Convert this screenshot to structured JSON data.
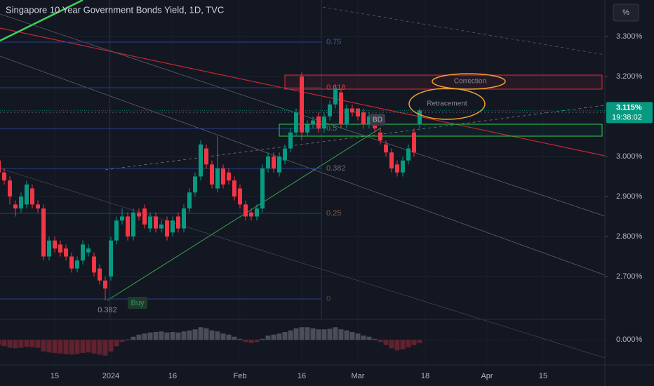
{
  "chart_data": {
    "type": "candlestick",
    "title": "Singapore 10 Year Government Bonds Yield, 1D, TVC",
    "y_axis_label": "%",
    "categories": [
      null,
      null,
      null,
      null,
      null,
      null,
      null,
      null,
      null,
      null,
      "15",
      null,
      null,
      null,
      null,
      null,
      null,
      null,
      null,
      null,
      "2024",
      null,
      null,
      null,
      null,
      null,
      null,
      null,
      null,
      null,
      null,
      "16",
      null,
      null,
      null,
      null,
      null,
      null,
      null,
      null,
      null,
      null,
      null,
      "Feb",
      null,
      null,
      null,
      null,
      null,
      null,
      null,
      null,
      null,
      null,
      "16",
      null,
      null,
      null,
      null,
      null,
      null,
      null,
      null,
      null,
      "Mar",
      null,
      null,
      null,
      null,
      null,
      null,
      null,
      null,
      null,
      null,
      null,
      "18",
      null,
      null,
      null,
      null,
      null,
      null,
      null,
      null,
      null,
      null,
      "Apr",
      null,
      null,
      null,
      null,
      null,
      null,
      null,
      null,
      null,
      "15"
    ],
    "open": [
      2.99,
      2.96,
      2.94,
      2.88,
      2.87,
      2.88,
      2.92,
      2.88,
      2.87,
      2.75,
      2.79,
      2.78,
      2.77,
      2.75,
      2.72,
      2.74,
      2.76,
      2.75,
      2.72,
      2.69,
      2.7,
      2.79,
      2.84,
      2.85,
      2.8,
      2.86,
      2.87,
      2.82,
      2.85,
      2.82,
      2.84,
      2.81,
      2.85,
      2.82,
      2.87,
      2.91,
      2.95,
      3.02,
      2.98,
      2.92,
      2.97,
      2.96,
      2.94,
      2.92,
      2.88,
      2.86,
      2.85,
      2.87,
      2.97,
      3.0,
      2.96,
      2.99,
      3.02,
      3.06,
      3.2,
      3.06,
      3.08,
      3.1,
      3.07,
      3.1,
      3.13,
      3.16,
      3.08,
      3.12,
      3.12,
      3.11,
      3.08,
      3.09,
      3.06,
      3.03,
      3.01,
      2.98,
      2.96,
      2.99,
      3.06,
      3.08,
      null,
      null,
      null,
      null,
      null,
      null,
      null,
      null,
      null,
      null,
      null,
      null,
      null,
      null,
      null,
      null,
      null,
      null,
      null,
      null,
      null,
      null
    ],
    "high": [
      3.0,
      2.97,
      2.95,
      2.89,
      2.91,
      2.94,
      2.93,
      2.89,
      2.88,
      2.8,
      2.8,
      2.79,
      2.78,
      2.76,
      2.75,
      2.79,
      2.78,
      2.76,
      2.73,
      2.7,
      2.8,
      2.85,
      2.87,
      2.86,
      2.87,
      2.87,
      2.88,
      2.86,
      2.86,
      2.84,
      2.85,
      2.85,
      2.86,
      2.88,
      2.92,
      2.96,
      3.04,
      3.03,
      2.99,
      3.05,
      2.98,
      2.97,
      2.95,
      2.93,
      2.89,
      2.87,
      2.88,
      2.98,
      3.01,
      3.01,
      3.01,
      3.03,
      3.07,
      3.12,
      3.21,
      3.09,
      3.1,
      3.11,
      3.11,
      3.14,
      3.18,
      3.17,
      3.13,
      3.13,
      3.12,
      3.12,
      3.11,
      3.1,
      3.07,
      3.04,
      3.02,
      2.99,
      3.0,
      3.03,
      3.07,
      3.12,
      null,
      null,
      null,
      null,
      null,
      null,
      null,
      null,
      null,
      null,
      null,
      null,
      null,
      null,
      null,
      null,
      null,
      null,
      null,
      null,
      null,
      null
    ],
    "low": [
      2.95,
      2.93,
      2.88,
      2.85,
      2.86,
      2.87,
      2.87,
      2.86,
      2.74,
      2.74,
      2.76,
      2.75,
      2.74,
      2.71,
      2.71,
      2.73,
      2.75,
      2.7,
      2.68,
      2.64,
      2.69,
      2.78,
      2.83,
      2.79,
      2.79,
      2.84,
      2.82,
      2.81,
      2.81,
      2.81,
      2.79,
      2.8,
      2.81,
      2.81,
      2.86,
      2.9,
      2.94,
      2.97,
      2.92,
      2.91,
      2.92,
      2.93,
      2.89,
      2.87,
      2.84,
      2.84,
      2.84,
      2.86,
      2.96,
      2.96,
      2.95,
      2.98,
      3.01,
      3.05,
      3.04,
      3.05,
      3.07,
      3.06,
      3.06,
      3.09,
      3.12,
      3.07,
      3.07,
      3.1,
      3.09,
      3.07,
      3.07,
      3.06,
      3.03,
      3.0,
      2.96,
      2.95,
      2.95,
      2.98,
      3.0,
      3.07,
      null,
      null,
      null,
      null,
      null,
      null,
      null,
      null,
      null,
      null,
      null,
      null,
      null,
      null,
      null,
      null,
      null,
      null,
      null,
      null,
      null,
      null
    ],
    "close": [
      2.96,
      2.94,
      2.9,
      2.87,
      2.9,
      2.93,
      2.88,
      2.87,
      2.75,
      2.79,
      2.77,
      2.76,
      2.75,
      2.72,
      2.74,
      2.78,
      2.77,
      2.71,
      2.69,
      2.67,
      2.79,
      2.84,
      2.85,
      2.8,
      2.86,
      2.85,
      2.83,
      2.85,
      2.82,
      2.83,
      2.8,
      2.84,
      2.82,
      2.87,
      2.91,
      2.95,
      3.03,
      2.98,
      2.93,
      2.97,
      2.93,
      2.94,
      2.9,
      2.88,
      2.85,
      2.85,
      2.87,
      2.97,
      3.0,
      2.97,
      3.0,
      3.02,
      3.06,
      3.11,
      3.06,
      3.08,
      3.09,
      3.07,
      3.1,
      3.13,
      3.17,
      3.08,
      3.12,
      3.11,
      3.1,
      3.08,
      3.1,
      3.07,
      3.04,
      3.01,
      2.97,
      2.96,
      2.99,
      3.02,
      3.01,
      3.115,
      null,
      null,
      null,
      null,
      null,
      null,
      null,
      null,
      null,
      null,
      null,
      null,
      null,
      null,
      null,
      null,
      null,
      null,
      null,
      null,
      null,
      null
    ],
    "up_color": "#089981",
    "down_color": "#f23645",
    "ylim": [
      2.593,
      3.391
    ],
    "yticks": [
      {
        "value": 2.7,
        "label": "2.700%"
      },
      {
        "value": 2.8,
        "label": "2.800%"
      },
      {
        "value": 2.9,
        "label": "2.900%"
      },
      {
        "value": 3.0,
        "label": "3.000%"
      },
      {
        "value": 3.2,
        "label": "3.200%"
      },
      {
        "value": 3.3,
        "label": "3.300%"
      }
    ],
    "grid": true,
    "last_price": {
      "value": 3.115,
      "label": "3.115%"
    },
    "countdown": "19:38:02",
    "indicator": {
      "ylim": [
        -0.045,
        0.035
      ],
      "yticks": [
        {
          "value": 0,
          "label": "0.000%"
        }
      ],
      "histogram": [
        -0.01,
        -0.012,
        -0.015,
        -0.016,
        -0.015,
        -0.013,
        -0.014,
        -0.015,
        -0.022,
        -0.024,
        -0.025,
        -0.026,
        -0.027,
        -0.028,
        -0.027,
        -0.025,
        -0.024,
        -0.026,
        -0.028,
        -0.03,
        -0.022,
        -0.012,
        -0.004,
        0.001,
        0.006,
        0.01,
        0.012,
        0.014,
        0.015,
        0.016,
        0.014,
        0.015,
        0.014,
        0.016,
        0.018,
        0.02,
        0.024,
        0.022,
        0.018,
        0.016,
        0.012,
        0.01,
        0.006,
        0.002,
        -0.004,
        -0.006,
        -0.004,
        0.002,
        0.008,
        0.01,
        0.012,
        0.015,
        0.018,
        0.022,
        0.024,
        0.024,
        0.022,
        0.02,
        0.02,
        0.021,
        0.024,
        0.02,
        0.018,
        0.015,
        0.012,
        0.008,
        0.006,
        0.002,
        -0.004,
        -0.01,
        -0.016,
        -0.02,
        -0.018,
        -0.014,
        -0.01,
        -0.006,
        null,
        null,
        null,
        null,
        null,
        null,
        null,
        null,
        null,
        null,
        null,
        null,
        null,
        null,
        null,
        null,
        null,
        null,
        null,
        null,
        null,
        null
      ]
    },
    "fib_levels": [
      "0.75",
      "0.618",
      "0.5",
      "0.382",
      "0.25",
      "0"
    ],
    "annotations": {
      "correction": "Correction",
      "retracement": "Retracement",
      "buy": "Buy",
      "signal": "BD",
      "fib_low": "0.382"
    }
  }
}
